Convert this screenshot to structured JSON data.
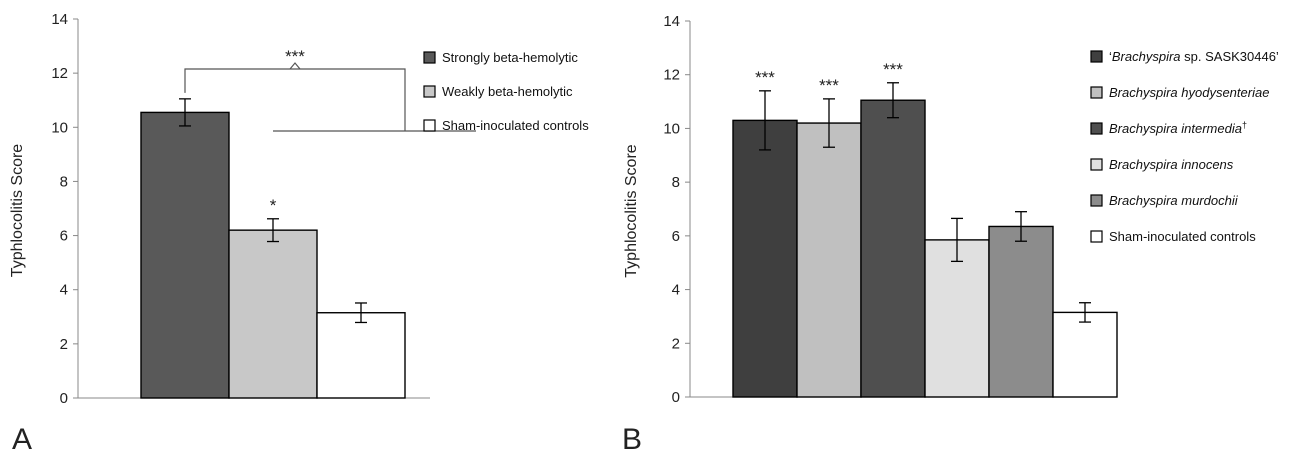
{
  "chart_data": [
    {
      "type": "bar",
      "panel_label": "A",
      "ylabel": "Typhlocolitis Score",
      "ylim": [
        0,
        14
      ],
      "yticks": [
        "0",
        "2",
        "4",
        "6",
        "8",
        "10",
        "12",
        "14"
      ],
      "legend_position": "right",
      "bars": [
        {
          "name": "Strongly beta-hemolytic",
          "value": 10.55,
          "error": 0.5,
          "color": "#595959",
          "significance": ""
        },
        {
          "name": "Weakly beta-hemolytic",
          "value": 6.2,
          "error": 0.42,
          "color": "#c8c8c8",
          "significance": "*"
        },
        {
          "name": "Sham-inoculated controls",
          "value": 3.15,
          "error": 0.36,
          "color": "#ffffff",
          "significance": ""
        }
      ],
      "bracket_label": "***"
    },
    {
      "type": "bar",
      "panel_label": "B",
      "ylabel": "Typhlocolitis Score",
      "ylim": [
        0,
        14
      ],
      "yticks": [
        "0",
        "2",
        "4",
        "6",
        "8",
        "10",
        "12",
        "14"
      ],
      "legend_position": "right",
      "bars": [
        {
          "name": "‘Brachyspira sp. SASK30446’",
          "name_parts": [
            [
              "‘",
              false
            ],
            [
              "Brachyspira",
              true
            ],
            [
              " sp. SASK30446’",
              false
            ]
          ],
          "value": 10.3,
          "error": 1.1,
          "color": "#3f3f3f",
          "significance": "***"
        },
        {
          "name": "Brachyspira hyodysenteriae",
          "name_parts": [
            [
              "Brachyspira hyodysenteriae",
              true
            ]
          ],
          "value": 10.2,
          "error": 0.9,
          "color": "#c0c0c0",
          "significance": "***"
        },
        {
          "name": "Brachyspira intermedia†",
          "name_parts": [
            [
              "Brachyspira intermedia",
              true
            ]
          ],
          "superscript": "†",
          "value": 11.05,
          "error": 0.65,
          "color": "#4f4f4f",
          "significance": "***"
        },
        {
          "name": "Brachyspira innocens",
          "name_parts": [
            [
              "Brachyspira innocens",
              true
            ]
          ],
          "value": 5.85,
          "error": 0.8,
          "color": "#e0e0e0",
          "significance": ""
        },
        {
          "name": "Brachyspira murdochii",
          "name_parts": [
            [
              "Brachyspira murdochii",
              true
            ]
          ],
          "value": 6.35,
          "error": 0.55,
          "color": "#8c8c8c",
          "significance": ""
        },
        {
          "name": "Sham-inoculated controls",
          "name_parts": [
            [
              "Sham-inoculated controls",
              false
            ]
          ],
          "value": 3.15,
          "error": 0.36,
          "color": "#ffffff",
          "significance": ""
        }
      ]
    }
  ]
}
